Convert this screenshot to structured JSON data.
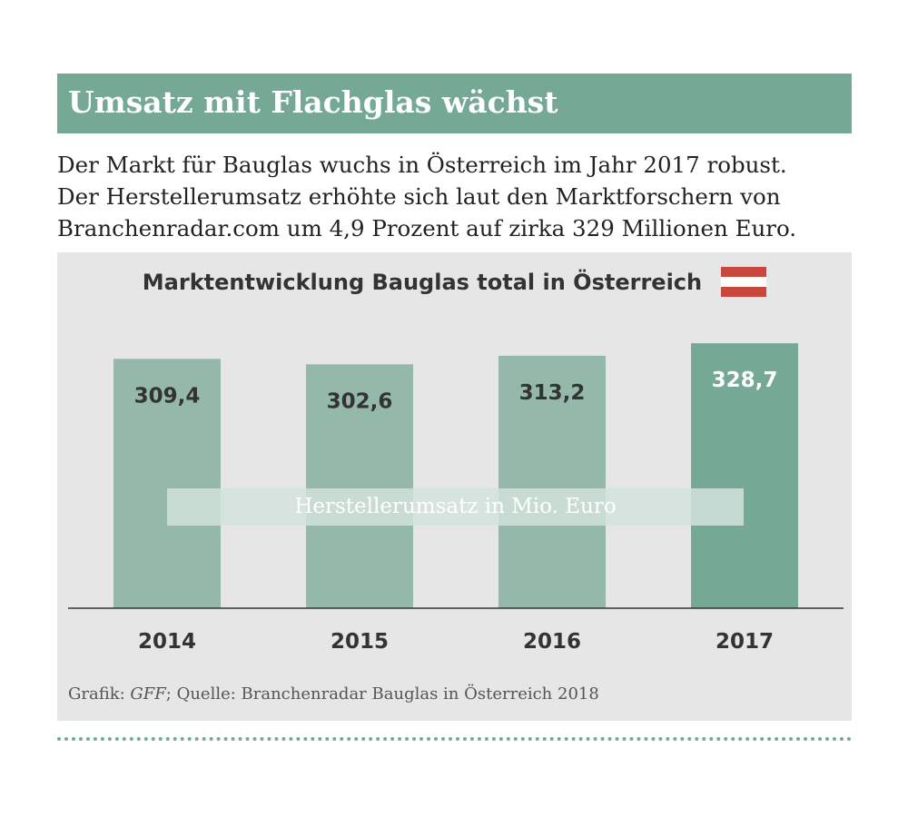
{
  "headline": "Umsatz mit Flachglas wächst",
  "intro_lines": [
    "Der Markt für Bauglas wuchs in Österreich im Jahr 2017 robust.",
    "Der Herstellerumsatz erhöhte sich laut den Marktforschern von",
    "Branchenradar.com um 4,9 Prozent auf zirka 329 Millionen Euro."
  ],
  "source": {
    "prefix": "Grafik: ",
    "author": "GFF",
    "rest": "; Quelle: Branchenradar Bauglas in Österreich 2018"
  },
  "colors": {
    "accent": "#76a896",
    "bar": "#94b8aa",
    "bar_highlight": "#76a896",
    "panel": "#e6e6e6",
    "flag_red": "#c9473c"
  },
  "chart_data": {
    "type": "bar",
    "title": "Marktentwicklung Bauglas total in Österreich",
    "categories": [
      "2014",
      "2015",
      "2016",
      "2017"
    ],
    "values": [
      309.4,
      302.6,
      313.2,
      328.7
    ],
    "value_labels": [
      "309,4",
      "302,6",
      "313,2",
      "328,7"
    ],
    "series_label": "Herstellerumsatz in Mio. Euro",
    "highlight_category": "2017",
    "ylim": [
      0,
      340
    ],
    "grid": false,
    "legend": "center"
  }
}
